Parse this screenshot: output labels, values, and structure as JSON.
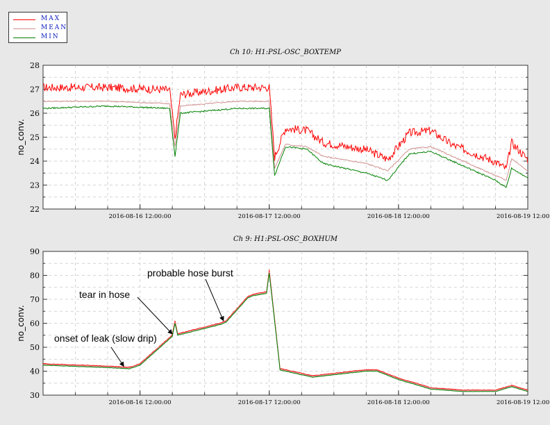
{
  "legend": [
    {
      "name": "MAX",
      "color": "#ff0000"
    },
    {
      "name": "MEAN",
      "color": "#d09090"
    },
    {
      "name": "MIN",
      "color": "#008000"
    }
  ],
  "chart_data": [
    {
      "type": "line",
      "title": "Ch 10: H1:PSL-OSC_BOXTEMP",
      "ylabel": "no_conv.",
      "xlabel": "",
      "ylim": [
        22,
        28
      ],
      "yticks": [
        22,
        23,
        24,
        25,
        26,
        27,
        28
      ],
      "xlim": [
        "2016-08-15 18:00:00",
        "2016-08-19 12:00:00"
      ],
      "xticks": [
        "2016-08-16 12:00:00",
        "2016-08-17 12:00:00",
        "2016-08-18 12:00:00",
        "2016-08-19 12:00:00"
      ],
      "grid": true,
      "legend_position": "top-left",
      "series": [
        {
          "name": "MAX",
          "color": "#ff0000",
          "x": [
            "2016-08-15 18:00:00",
            "2016-08-16 06:00:00",
            "2016-08-16 17:30:00",
            "2016-08-16 18:30:00",
            "2016-08-16 19:30:00",
            "2016-08-17 06:00:00",
            "2016-08-17 12:00:00",
            "2016-08-17 13:00:00",
            "2016-08-17 15:00:00",
            "2016-08-17 19:00:00",
            "2016-08-17 22:00:00",
            "2016-08-18 06:00:00",
            "2016-08-18 10:00:00",
            "2016-08-18 14:00:00",
            "2016-08-18 18:00:00",
            "2016-08-18 22:00:00",
            "2016-08-19 06:00:00",
            "2016-08-19 08:00:00",
            "2016-08-19 09:00:00",
            "2016-08-19 12:00:00"
          ],
          "y": [
            26.9,
            26.9,
            26.8,
            24.8,
            26.6,
            26.9,
            26.9,
            24.0,
            25.2,
            25.1,
            24.6,
            24.3,
            23.9,
            25.0,
            25.1,
            24.5,
            23.8,
            23.5,
            24.6,
            23.9
          ]
        },
        {
          "name": "MEAN",
          "color": "#d09090",
          "x": [
            "2016-08-15 18:00:00",
            "2016-08-16 06:00:00",
            "2016-08-16 17:30:00",
            "2016-08-16 18:30:00",
            "2016-08-16 19:30:00",
            "2016-08-17 06:00:00",
            "2016-08-17 12:00:00",
            "2016-08-17 13:00:00",
            "2016-08-17 15:00:00",
            "2016-08-17 19:00:00",
            "2016-08-17 22:00:00",
            "2016-08-18 06:00:00",
            "2016-08-18 10:00:00",
            "2016-08-18 14:00:00",
            "2016-08-18 18:00:00",
            "2016-08-18 22:00:00",
            "2016-08-19 06:00:00",
            "2016-08-19 08:00:00",
            "2016-08-19 09:00:00",
            "2016-08-19 12:00:00"
          ],
          "y": [
            26.5,
            26.5,
            26.4,
            24.6,
            26.3,
            26.5,
            26.5,
            23.7,
            24.7,
            24.6,
            24.2,
            23.9,
            23.6,
            24.5,
            24.6,
            24.2,
            23.4,
            23.2,
            24.1,
            23.6
          ]
        },
        {
          "name": "MIN",
          "color": "#008000",
          "x": [
            "2016-08-15 18:00:00",
            "2016-08-16 06:00:00",
            "2016-08-16 17:30:00",
            "2016-08-16 18:30:00",
            "2016-08-16 19:30:00",
            "2016-08-17 06:00:00",
            "2016-08-17 12:00:00",
            "2016-08-17 13:00:00",
            "2016-08-17 15:00:00",
            "2016-08-17 19:00:00",
            "2016-08-17 22:00:00",
            "2016-08-18 06:00:00",
            "2016-08-18 10:00:00",
            "2016-08-18 14:00:00",
            "2016-08-18 18:00:00",
            "2016-08-18 22:00:00",
            "2016-08-19 06:00:00",
            "2016-08-19 08:00:00",
            "2016-08-19 09:00:00",
            "2016-08-19 12:00:00"
          ],
          "y": [
            26.2,
            26.3,
            26.2,
            24.2,
            26.0,
            26.2,
            26.2,
            23.4,
            24.6,
            24.5,
            23.9,
            23.5,
            23.2,
            24.3,
            24.4,
            24.0,
            23.2,
            22.9,
            23.7,
            23.3
          ]
        }
      ]
    },
    {
      "type": "line",
      "title": "Ch 9: H1:PSL-OSC_BOXHUM",
      "ylabel": "no_conv.",
      "xlabel": "",
      "ylim": [
        30,
        90
      ],
      "yticks": [
        30,
        40,
        50,
        60,
        70,
        80,
        90
      ],
      "xlim": [
        "2016-08-15 18:00:00",
        "2016-08-19 12:00:00"
      ],
      "xticks": [
        "2016-08-16 12:00:00",
        "2016-08-17 12:00:00",
        "2016-08-18 12:00:00",
        "2016-08-19 12:00:00"
      ],
      "grid": true,
      "series": [
        {
          "name": "MAX",
          "color": "#ff0000",
          "x": [
            "2016-08-15 18:00:00",
            "2016-08-16 06:00:00",
            "2016-08-16 10:00:00",
            "2016-08-16 12:00:00",
            "2016-08-16 16:00:00",
            "2016-08-16 18:00:00",
            "2016-08-16 18:30:00",
            "2016-08-16 19:00:00",
            "2016-08-17 03:00:00",
            "2016-08-17 04:00:00",
            "2016-08-17 08:00:00",
            "2016-08-17 09:00:00",
            "2016-08-17 11:30:00",
            "2016-08-17 12:00:00",
            "2016-08-17 14:00:00",
            "2016-08-17 20:00:00",
            "2016-08-18 00:00:00",
            "2016-08-18 06:00:00",
            "2016-08-18 08:00:00",
            "2016-08-18 12:00:00",
            "2016-08-18 18:00:00",
            "2016-08-19 00:00:00",
            "2016-08-19 06:00:00",
            "2016-08-19 09:00:00",
            "2016-08-19 12:00:00"
          ],
          "y": [
            43,
            42,
            41.5,
            43,
            51,
            55,
            61,
            55.5,
            60,
            61,
            71,
            72,
            73,
            82,
            41,
            38,
            39,
            40.5,
            40.5,
            37,
            33,
            32,
            32,
            34,
            32
          ]
        },
        {
          "name": "MEAN",
          "color": "#d09090",
          "x": [
            "2016-08-15 18:00:00",
            "2016-08-16 06:00:00",
            "2016-08-16 10:00:00",
            "2016-08-16 12:00:00",
            "2016-08-16 16:00:00",
            "2016-08-16 18:00:00",
            "2016-08-16 18:30:00",
            "2016-08-16 19:00:00",
            "2016-08-17 03:00:00",
            "2016-08-17 04:00:00",
            "2016-08-17 08:00:00",
            "2016-08-17 09:00:00",
            "2016-08-17 11:30:00",
            "2016-08-17 12:00:00",
            "2016-08-17 14:00:00",
            "2016-08-17 20:00:00",
            "2016-08-18 00:00:00",
            "2016-08-18 06:00:00",
            "2016-08-18 08:00:00",
            "2016-08-18 12:00:00",
            "2016-08-18 18:00:00",
            "2016-08-19 00:00:00",
            "2016-08-19 06:00:00",
            "2016-08-19 09:00:00",
            "2016-08-19 12:00:00"
          ],
          "y": [
            42.8,
            41.8,
            41.3,
            42.8,
            50.8,
            54.8,
            60.5,
            55.3,
            59.8,
            60.8,
            70.8,
            71.8,
            72.8,
            81.5,
            40.8,
            37.8,
            38.8,
            40.3,
            40.3,
            36.8,
            32.8,
            31.8,
            31.8,
            33.8,
            31.8
          ]
        },
        {
          "name": "MIN",
          "color": "#008000",
          "x": [
            "2016-08-15 18:00:00",
            "2016-08-16 06:00:00",
            "2016-08-16 10:00:00",
            "2016-08-16 12:00:00",
            "2016-08-16 16:00:00",
            "2016-08-16 18:00:00",
            "2016-08-16 18:30:00",
            "2016-08-16 19:00:00",
            "2016-08-17 03:00:00",
            "2016-08-17 04:00:00",
            "2016-08-17 08:00:00",
            "2016-08-17 09:00:00",
            "2016-08-17 11:30:00",
            "2016-08-17 12:00:00",
            "2016-08-17 14:00:00",
            "2016-08-17 20:00:00",
            "2016-08-18 00:00:00",
            "2016-08-18 06:00:00",
            "2016-08-18 08:00:00",
            "2016-08-18 12:00:00",
            "2016-08-18 18:00:00",
            "2016-08-19 00:00:00",
            "2016-08-19 06:00:00",
            "2016-08-19 09:00:00",
            "2016-08-19 12:00:00"
          ],
          "y": [
            42.5,
            41.5,
            41,
            42.5,
            50.5,
            54.5,
            60,
            55,
            59.5,
            60.5,
            70.5,
            71.5,
            72.5,
            81,
            40.5,
            37.5,
            38.5,
            40,
            40,
            36.5,
            32.5,
            31.5,
            31.5,
            33.5,
            31.5
          ]
        }
      ],
      "annotations": [
        {
          "text": "probable hose burst",
          "target_x": "2016-08-17 03:30:00",
          "target_y": 61
        },
        {
          "text": "tear in hose",
          "target_x": "2016-08-16 18:00:00",
          "target_y": 55.5
        },
        {
          "text": "onset of leak (slow drip)",
          "target_x": "2016-08-16 09:00:00",
          "target_y": 42
        }
      ]
    }
  ]
}
